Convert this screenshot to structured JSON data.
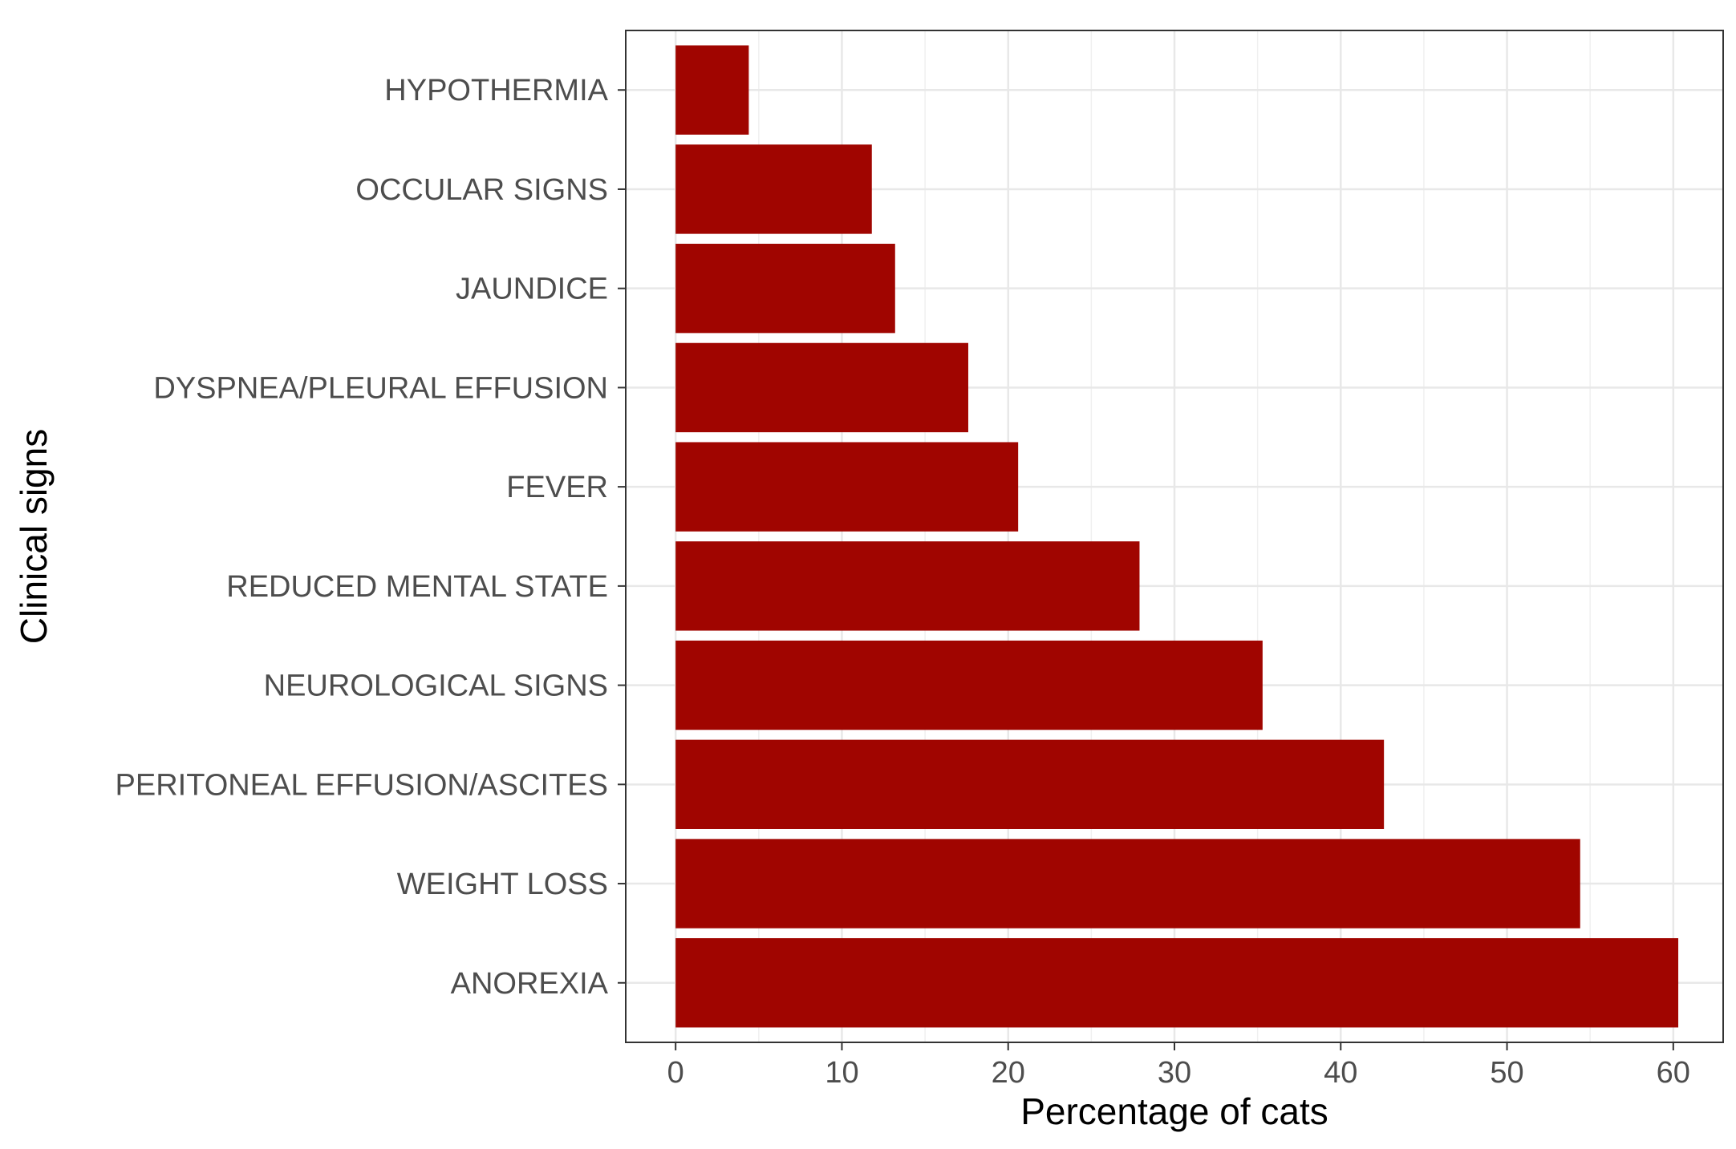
{
  "chart_data": {
    "type": "bar",
    "orientation": "horizontal",
    "title": "",
    "xlabel": "Percentage of cats",
    "ylabel": "Clinical signs",
    "xlim": [
      -3,
      63
    ],
    "x_ticks": [
      0,
      10,
      20,
      30,
      40,
      50,
      60
    ],
    "grid": true,
    "legend": "none",
    "bar_color": "#a00500",
    "categories": [
      "HYPOTHERMIA",
      "OCCULAR SIGNS",
      "JAUNDICE",
      "DYSPNEA/PLEURAL EFFUSION",
      "FEVER",
      "REDUCED MENTAL STATE",
      "NEUROLOGICAL SIGNS",
      "PERITONEAL EFFUSION/ASCITES",
      "WEIGHT LOSS",
      "ANOREXIA"
    ],
    "values": [
      4.4,
      11.8,
      13.2,
      17.6,
      20.6,
      27.9,
      35.3,
      42.6,
      54.4,
      60.3
    ]
  }
}
